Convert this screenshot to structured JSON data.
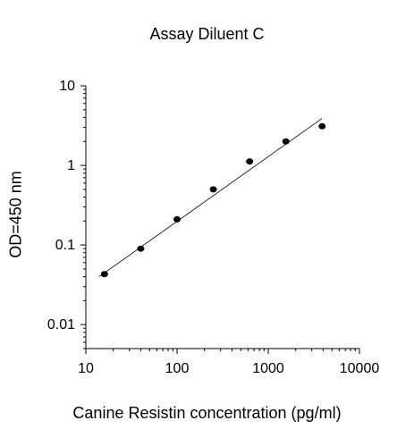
{
  "chart_data": {
    "type": "scatter",
    "title": "Assay Diluent C",
    "xlabel": "Canine Resistin concentration (pg/ml)",
    "ylabel": "OD=450 nm",
    "xscale": "log",
    "yscale": "log",
    "xlim": [
      10,
      10000
    ],
    "ylim": [
      0.005,
      10
    ],
    "xticks": [
      10,
      100,
      1000,
      10000
    ],
    "xtick_labels": [
      "10",
      "100",
      "1000",
      "10000"
    ],
    "yticks": [
      10,
      1,
      0.1,
      0.01
    ],
    "ytick_labels": [
      "10",
      "1",
      "0.1",
      "0.01"
    ],
    "grid": false,
    "marker_color": "#000000",
    "points": [
      {
        "x": 16.0,
        "y": 0.043
      },
      {
        "x": 40.0,
        "y": 0.09
      },
      {
        "x": 100.0,
        "y": 0.21
      },
      {
        "x": 250.0,
        "y": 0.5
      },
      {
        "x": 625.0,
        "y": 1.12
      },
      {
        "x": 1560.0,
        "y": 2.0
      },
      {
        "x": 3900.0,
        "y": 3.1
      }
    ],
    "fit_line": {
      "x": [
        14.0,
        3900.0
      ],
      "y": [
        0.04,
        3.9
      ]
    }
  }
}
